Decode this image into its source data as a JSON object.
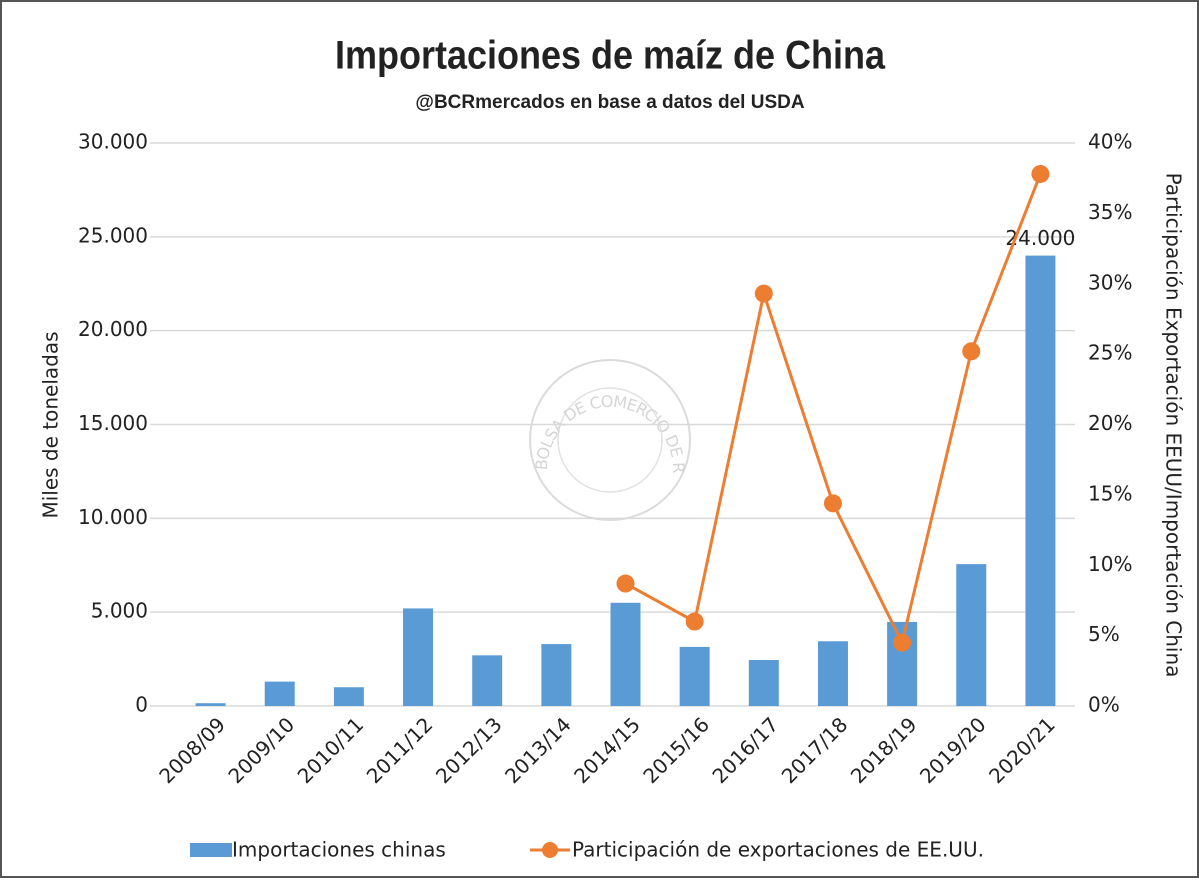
{
  "chart_data": {
    "type": "bar_line",
    "title": "Importaciones de maíz de China",
    "subtitle": "@BCRmercados en base a datos del USDA",
    "watermark": "BOLSA DE COMERCIO DE ROSARIO",
    "y_label": "Miles de toneladas",
    "y2_label": "Participación Exportación EEUU/Importación China",
    "categories": [
      "2008/09",
      "2009/10",
      "2010/11",
      "2011/12",
      "2012/13",
      "2013/14",
      "2014/15",
      "2015/16",
      "2016/17",
      "2017/18",
      "2018/19",
      "2019/20",
      "2020/21"
    ],
    "series": [
      {
        "name": "Importaciones chinas",
        "type": "bar",
        "color": "#5b9bd5",
        "values": [
          150,
          1300,
          1000,
          5200,
          2700,
          3300,
          5500,
          3150,
          2450,
          3450,
          4480,
          7560,
          24000
        ],
        "value_labels": [
          null,
          null,
          null,
          null,
          null,
          null,
          null,
          null,
          null,
          null,
          null,
          null,
          "24.000"
        ]
      },
      {
        "name": "Participación de exportaciones de EE.UU.",
        "type": "line",
        "axis": "y2",
        "color": "#ed7d31",
        "values": [
          null,
          null,
          null,
          null,
          null,
          null,
          8.7,
          6.0,
          29.3,
          14.4,
          4.5,
          25.2,
          37.8
        ]
      }
    ],
    "ylim": [
      0,
      30000
    ],
    "yticks": [
      0,
      {
        "value": 5000,
        "label": "5.000"
      },
      {
        "value": 10000,
        "label": "10.000"
      },
      {
        "value": 15000,
        "label": "15.000"
      },
      {
        "value": 20000,
        "label": "20.000"
      },
      {
        "value": 25000,
        "label": "25.000"
      },
      {
        "value": 30000,
        "label": "30.000"
      }
    ],
    "y2lim": [
      0,
      40
    ],
    "y2ticks": [
      {
        "value": 0,
        "label": "0%"
      },
      {
        "value": 5,
        "label": "5%"
      },
      {
        "value": 10,
        "label": "10%"
      },
      {
        "value": 15,
        "label": "15%"
      },
      {
        "value": 20,
        "label": "20%"
      },
      {
        "value": 25,
        "label": "25%"
      },
      {
        "value": 30,
        "label": "30%"
      },
      {
        "value": 35,
        "label": "35%"
      },
      {
        "value": 40,
        "label": "40%"
      }
    ],
    "grid": true,
    "legend": "bottom"
  }
}
